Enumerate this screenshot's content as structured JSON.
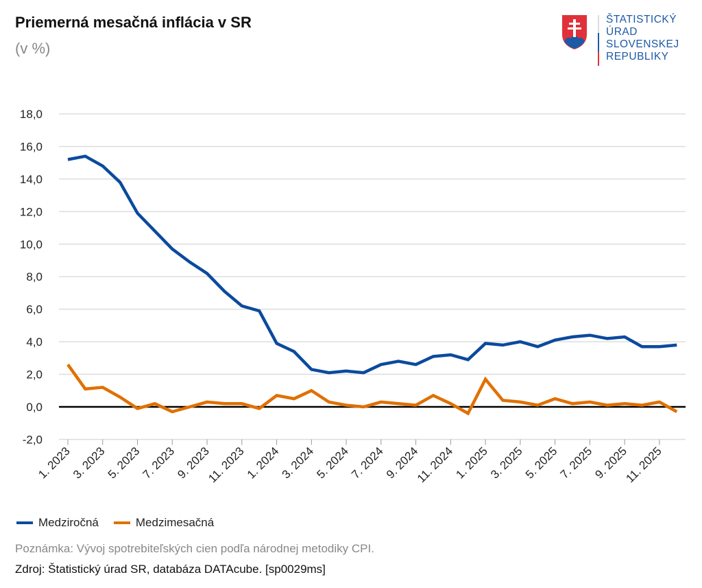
{
  "header": {
    "title": "Priemerná mesačná inflácia v SR",
    "subtitle": "(v %)"
  },
  "logo": {
    "lines": [
      "ŠTATISTICKÝ",
      "ÚRAD",
      "SLOVENSKEJ",
      "REPUBLIKY"
    ]
  },
  "colors": {
    "blue": "#0b4a9e",
    "orange": "#e07000"
  },
  "chart_data": {
    "type": "line",
    "title": "Priemerná mesačná inflácia v SR",
    "ylabel": "v %",
    "ylim": [
      -2,
      18
    ],
    "yticks": [
      "-2,0",
      "0,0",
      "2,0",
      "4,0",
      "6,0",
      "8,0",
      "10,0",
      "12,0",
      "14,0",
      "16,0",
      "18,0"
    ],
    "ytick_values": [
      -2,
      0,
      2,
      4,
      6,
      8,
      10,
      12,
      14,
      16,
      18
    ],
    "grid": true,
    "legend": "bottom-left",
    "x": [
      "1. 2023",
      "2. 2023",
      "3. 2023",
      "4. 2023",
      "5. 2023",
      "6. 2023",
      "7. 2023",
      "8. 2023",
      "9. 2023",
      "10. 2023",
      "11. 2023",
      "12. 2023",
      "1. 2024",
      "2. 2024",
      "3. 2024",
      "4. 2024",
      "5. 2024",
      "6. 2024",
      "7. 2024",
      "8. 2024",
      "9. 2024",
      "10. 2024",
      "11. 2024",
      "12. 2024",
      "1. 2025",
      "2. 2025",
      "3. 2025",
      "4. 2025",
      "5. 2025",
      "6. 2025",
      "7. 2025",
      "8. 2025",
      "9. 2025",
      "10. 2025",
      "11. 2025",
      "12. 2025"
    ],
    "xtick_labels": [
      "1. 2023",
      "3. 2023",
      "5. 2023",
      "7. 2023",
      "9. 2023",
      "11. 2023",
      "1. 2024",
      "3. 2024",
      "5. 2024",
      "7. 2024",
      "9. 2024",
      "11. 2024",
      "1. 2025",
      "3. 2025",
      "5. 2025",
      "7. 2025",
      "9. 2025",
      "11. 2025"
    ],
    "series": [
      {
        "name": "Medziročná",
        "color": "#0b4a9e",
        "values": [
          15.2,
          15.4,
          14.8,
          13.8,
          11.9,
          10.8,
          9.7,
          8.9,
          8.2,
          7.1,
          6.2,
          5.9,
          3.9,
          3.4,
          2.3,
          2.1,
          2.2,
          2.1,
          2.6,
          2.8,
          2.6,
          3.1,
          3.2,
          2.9,
          3.9,
          3.8,
          4.0,
          3.7,
          4.1,
          4.3,
          4.4,
          4.2,
          4.3,
          3.7,
          3.7,
          3.8
        ]
      },
      {
        "name": "Medzimesačná",
        "color": "#e07000",
        "values": [
          2.6,
          1.1,
          1.2,
          0.6,
          -0.1,
          0.2,
          -0.3,
          0.0,
          0.3,
          0.2,
          0.2,
          -0.1,
          0.7,
          0.5,
          1.0,
          0.3,
          0.1,
          0.0,
          0.3,
          0.2,
          0.1,
          0.7,
          0.2,
          -0.4,
          1.7,
          0.4,
          0.3,
          0.1,
          0.5,
          0.2,
          0.3,
          0.1,
          0.2,
          0.1,
          0.3,
          -0.3
        ]
      }
    ]
  },
  "footer": {
    "note": "Poznámka: Vývoj spotrebiteľských cien podľa národnej metodiky CPI.",
    "source": "Zdroj: Štatistický úrad SR, databáza DATAcube. [sp0029ms]"
  }
}
